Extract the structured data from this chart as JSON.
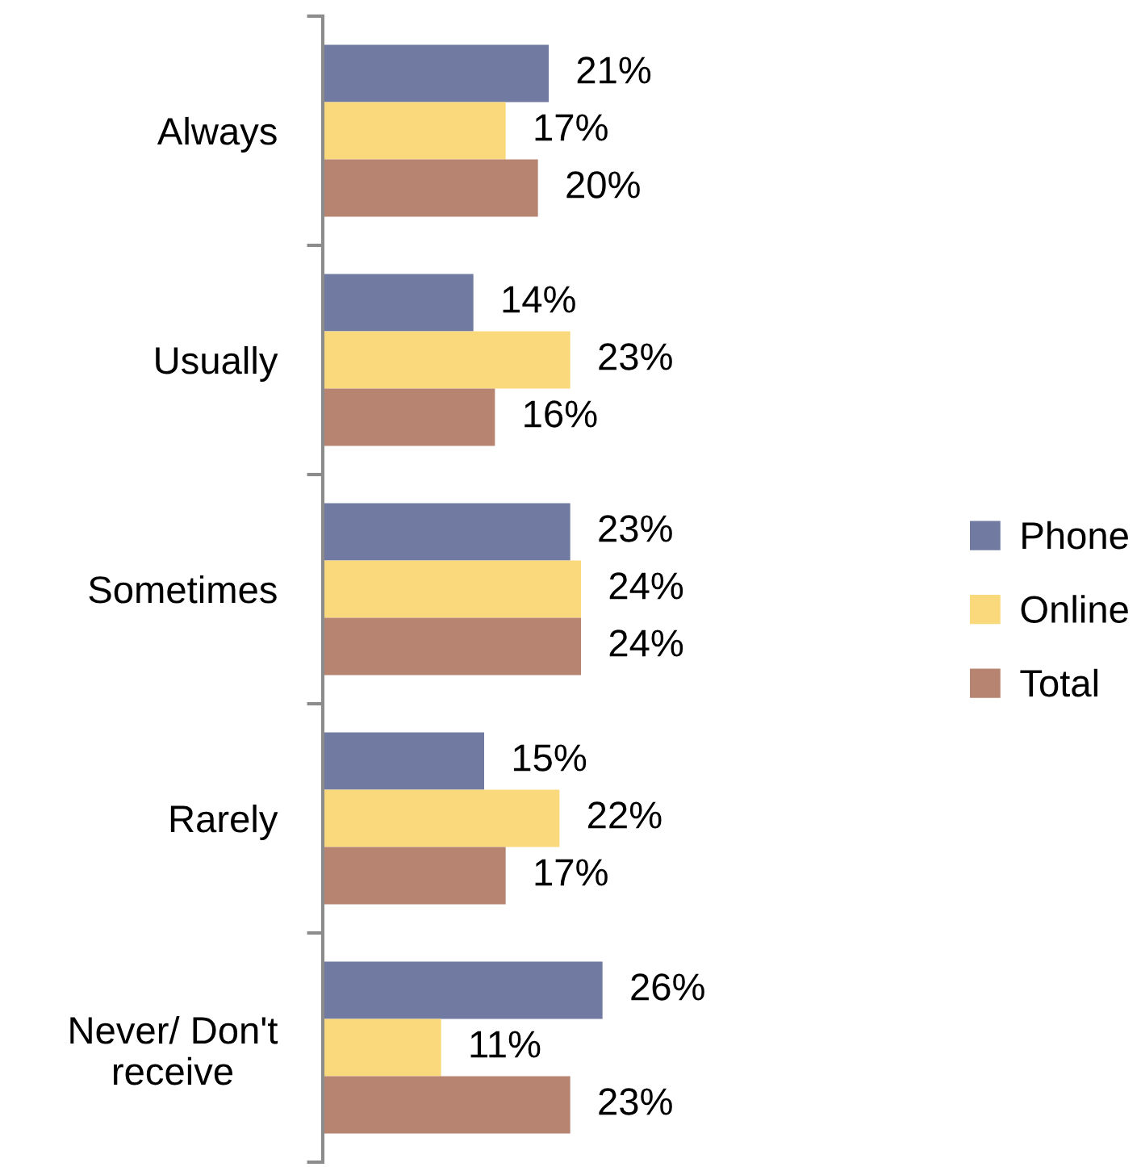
{
  "chart_data": {
    "type": "bar",
    "orientation": "horizontal",
    "categories": [
      "Always",
      "Usually",
      "Sometimes",
      "Rarely",
      "Never/ Don't\nreceive"
    ],
    "series": [
      {
        "name": "Phone",
        "color": "#717ba1",
        "values": [
          21,
          14,
          23,
          15,
          26
        ],
        "value_labels": [
          "21%",
          "14%",
          "23%",
          "15%",
          "26%"
        ]
      },
      {
        "name": "Online",
        "color": "#f9d97b",
        "values": [
          17,
          23,
          24,
          22,
          11
        ],
        "value_labels": [
          "17%",
          "23%",
          "24%",
          "22%",
          "11%"
        ]
      },
      {
        "name": "Total",
        "color": "#b78472",
        "values": [
          20,
          16,
          24,
          17,
          23
        ],
        "value_labels": [
          "20%",
          "16%",
          "24%",
          "17%",
          "23%"
        ]
      }
    ],
    "legend": "right",
    "grid": false,
    "tick_labels": "y"
  }
}
